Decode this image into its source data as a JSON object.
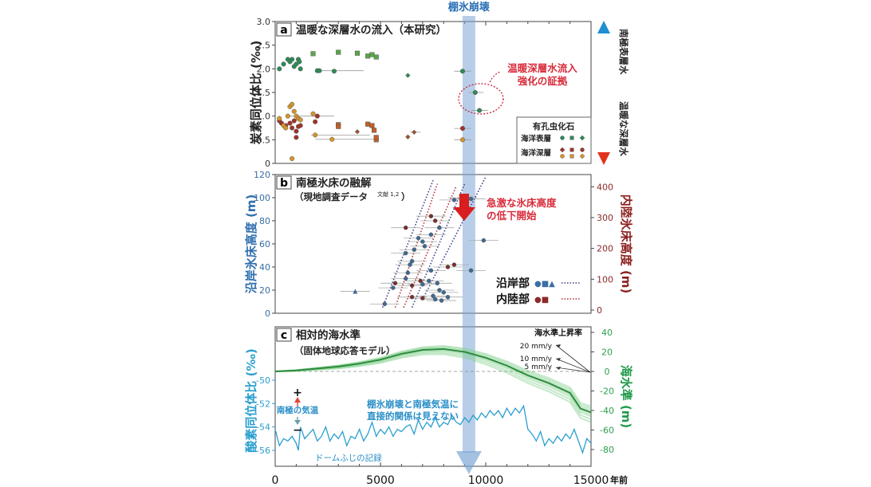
{
  "figure": {
    "top_label": "棚氷崩壊",
    "x_axis": {
      "ticks": [
        "0",
        "5000",
        "10000",
        "15000"
      ],
      "unit": "年前",
      "min": 0,
      "max": 15000
    },
    "collapse_time": 9200
  },
  "chart_data": [
    {
      "panel": "a",
      "type": "scatter",
      "title": "温暖な深層水の流入（本研究）",
      "ylabel": "炭素同位体比 (‰)",
      "ylim": [
        0,
        3.0
      ],
      "yticks": [
        "0",
        "0.5",
        "1.0",
        "1.5",
        "2.0",
        "2.5",
        "3.0"
      ],
      "annotation": "温暖深層水流入\n強化の証拠",
      "right_arrow": {
        "top": "南極表層水",
        "bottom": "温暖な深層水"
      },
      "legend": {
        "title": "有孔虫化石",
        "rows": [
          "海洋表層",
          "海洋深層"
        ]
      },
      "series": [
        {
          "name": "海洋表層 (circle)",
          "color": "#2e8b57",
          "points": [
            [
              200,
              2.0
            ],
            [
              400,
              2.1
            ],
            [
              600,
              2.2
            ],
            [
              700,
              2.15
            ],
            [
              800,
              2.2
            ],
            [
              900,
              2.05
            ],
            [
              1000,
              2.1
            ],
            [
              1100,
              2.2
            ],
            [
              1150,
              2.15
            ],
            [
              1200,
              2.0
            ],
            [
              2000,
              1.96
            ],
            [
              2100,
              1.96
            ],
            [
              2800,
              1.95
            ],
            [
              8900,
              1.95
            ],
            [
              9500,
              1.5
            ],
            [
              9700,
              1.12
            ]
          ]
        },
        {
          "name": "海洋表層 (square)",
          "color": "#5aa64a",
          "points": [
            [
              1800,
              2.32
            ],
            [
              3000,
              2.35
            ],
            [
              3900,
              2.33
            ],
            [
              4400,
              2.27
            ],
            [
              4600,
              2.3
            ],
            [
              4800,
              2.25
            ]
          ]
        },
        {
          "name": "海洋表層 (diamond)",
          "color": "#2e8b57",
          "points": [
            [
              6300,
              1.86
            ]
          ]
        },
        {
          "name": "海洋深層 (circle, red)",
          "color": "#a0332b",
          "points": [
            [
              200,
              0.9
            ],
            [
              300,
              0.85
            ],
            [
              500,
              0.8
            ],
            [
              700,
              0.85
            ],
            [
              800,
              0.75
            ],
            [
              900,
              0.9
            ],
            [
              1000,
              0.55
            ],
            [
              1000,
              0.68
            ],
            [
              1100,
              0.78
            ],
            [
              1200,
              0.8
            ],
            [
              1900,
              0.88
            ],
            [
              2000,
              1.0
            ],
            [
              8900,
              0.74
            ]
          ]
        },
        {
          "name": "海洋深層 (circle, orange)",
          "color": "#d4952a",
          "points": [
            [
              200,
              0.95
            ],
            [
              400,
              0.8
            ],
            [
              500,
              0.75
            ],
            [
              600,
              1.0
            ],
            [
              700,
              1.2
            ],
            [
              800,
              1.25
            ],
            [
              900,
              1.1
            ],
            [
              1000,
              1.0
            ],
            [
              1100,
              0.95
            ],
            [
              1200,
              0.92
            ],
            [
              1800,
              1.05
            ],
            [
              1900,
              0.6
            ],
            [
              2700,
              0.51
            ],
            [
              800,
              0.1
            ],
            [
              8900,
              0.5
            ]
          ]
        },
        {
          "name": "海洋深層 (square)",
          "color": "#c0602a",
          "points": [
            [
              3000,
              0.82
            ],
            [
              3000,
              0.78
            ],
            [
              4400,
              0.83
            ],
            [
              4600,
              0.8
            ],
            [
              4700,
              0.7
            ],
            [
              4800,
              0.5
            ],
            [
              4800,
              0.55
            ]
          ]
        },
        {
          "name": "海洋深層 (diamond)",
          "color": "#a0522d",
          "points": [
            [
              3900,
              0.67
            ],
            [
              6300,
              0.56
            ],
            [
              6600,
              0.66
            ]
          ]
        }
      ]
    },
    {
      "panel": "b",
      "type": "scatter",
      "title": "南極氷床の融解",
      "subtitle": "（現地調査データ",
      "subtitle_ref": "文献 1,2",
      "ylabel_left": "沿岸氷床高度 (m)",
      "ylabel_right": "内陸氷床高度 (m)",
      "ylim_left": [
        0,
        120
      ],
      "ylim_right": [
        0,
        450
      ],
      "yticks_left": [
        "0",
        "20",
        "40",
        "60",
        "80",
        "100",
        "120"
      ],
      "yticks_right": [
        "0",
        "100",
        "200",
        "300",
        "400"
      ],
      "annotation": "急激な氷床高度\nの低下開始",
      "legend": [
        {
          "label": "沿岸部",
          "markers": "●■▲",
          "color": "#3a6ea5"
        },
        {
          "label": "内陸部",
          "markers": "●■",
          "color": "#8b2a2a"
        }
      ],
      "series": [
        {
          "name": "沿岸部",
          "color": "#3e6a93",
          "points": [
            [
              5200,
              8
            ],
            [
              5600,
              22
            ],
            [
              6200,
              30
            ],
            [
              6300,
              35
            ],
            [
              6400,
              42
            ],
            [
              6500,
              45
            ],
            [
              6200,
              52
            ],
            [
              6600,
              55
            ],
            [
              6800,
              65
            ],
            [
              7000,
              62
            ],
            [
              7100,
              58
            ],
            [
              7400,
              68
            ],
            [
              7800,
              74
            ],
            [
              7300,
              28
            ],
            [
              7700,
              26
            ],
            [
              7000,
              25
            ],
            [
              7500,
              15
            ],
            [
              8000,
              18
            ],
            [
              8200,
              14
            ],
            [
              7600,
              12
            ],
            [
              7900,
              11
            ],
            [
              8500,
              98
            ],
            [
              9300,
              99
            ],
            [
              9900,
              63
            ],
            [
              9300,
              37
            ],
            [
              7400,
              37
            ],
            [
              7800,
              20
            ]
          ]
        },
        {
          "name": "沿岸部 (triangle)",
          "color": "#3e6a93",
          "points": [
            [
              3800,
              19
            ]
          ]
        },
        {
          "name": "内陸部",
          "color": "#7a2f2a",
          "points": [
            [
              5700,
              26
            ],
            [
              6500,
              24
            ],
            [
              6900,
              28
            ],
            [
              6500,
              14
            ],
            [
              7000,
              13
            ],
            [
              6200,
              74
            ],
            [
              7400,
              84
            ],
            [
              7600,
              80
            ],
            [
              8200,
              40
            ],
            [
              8500,
              42
            ],
            [
              8900,
              100
            ]
          ]
        }
      ]
    },
    {
      "panel": "c",
      "type": "line",
      "title": "相対的海水準",
      "subtitle": "（固体地球応答モデル）",
      "ylabel_left": "酸素同位体比 (‰)",
      "ylabel_right": "海水準 (m)",
      "ylim_left": [
        -57.5,
        -44
      ],
      "ylim_right": [
        -90,
        45
      ],
      "yticks_left": [
        "-50",
        "-52",
        "-54",
        "-56"
      ],
      "yticks_right": [
        "40",
        "20",
        "0",
        "-20",
        "-40",
        "-60",
        "-80"
      ],
      "rate_legend": {
        "title": "海水準上昇率",
        "labels": [
          "20 mm/y",
          "10 mm/y",
          "5 mm/y"
        ]
      },
      "temp_labels": {
        "plus": "+",
        "minus": "−",
        "text": "南極の気温"
      },
      "annotation": "棚氷崩壊と南極気温に\n直接的関係は見えない",
      "record_label": "ドームふじの記録",
      "sea_level": {
        "x": [
          0,
          1000,
          2000,
          3000,
          4000,
          5000,
          6000,
          7000,
          8000,
          9000,
          10000,
          11000,
          12000,
          13000,
          14000,
          14500,
          15000
        ],
        "y": [
          0,
          1,
          3,
          5,
          8,
          12,
          18,
          22,
          23,
          20,
          14,
          6,
          -4,
          -12,
          -22,
          -38,
          -42
        ]
      },
      "oxygen_isotope": {
        "x": [
          0,
          200,
          400,
          600,
          800,
          1000,
          1100,
          1200,
          1400,
          1600,
          1800,
          2000,
          2200,
          2400,
          2600,
          2800,
          3000,
          3200,
          3400,
          3600,
          3800,
          4000,
          4200,
          4400,
          4600,
          4800,
          5000,
          5200,
          5400,
          5600,
          5800,
          6000,
          6200,
          6400,
          6600,
          6800,
          7000,
          7200,
          7400,
          7600,
          7800,
          8000,
          8200,
          8400,
          8600,
          8800,
          9000,
          9200,
          9400,
          9600,
          9800,
          10000,
          10200,
          10400,
          10600,
          10800,
          11000,
          11200,
          11400,
          11600,
          11800,
          12000,
          12200,
          12400,
          12600,
          12800,
          13000,
          13200,
          13400,
          13600,
          13800,
          14000,
          14200,
          14400,
          14600,
          14800,
          15000
        ],
        "y": [
          -54.2,
          -55.6,
          -55.0,
          -55.2,
          -54.8,
          -55.4,
          -56.0,
          -54.0,
          -55.0,
          -54.6,
          -54.2,
          -55.2,
          -54.8,
          -54.0,
          -55.2,
          -54.6,
          -55.0,
          -54.4,
          -55.6,
          -54.8,
          -55.0,
          -54.2,
          -55.2,
          -54.6,
          -53.6,
          -54.8,
          -54.2,
          -54.6,
          -54.0,
          -54.8,
          -54.2,
          -54.4,
          -54.0,
          -53.8,
          -54.6,
          -53.4,
          -54.2,
          -53.6,
          -54.0,
          -53.2,
          -54.0,
          -53.6,
          -53.8,
          -53.0,
          -53.6,
          -53.8,
          -53.2,
          -53.6,
          -53.0,
          -53.4,
          -52.8,
          -53.2,
          -52.6,
          -53.0,
          -52.6,
          -53.2,
          -52.4,
          -53.0,
          -52.4,
          -52.8,
          -52.2,
          -54.2,
          -54.6,
          -55.2,
          -54.4,
          -55.6,
          -55.0,
          -55.4,
          -54.8,
          -55.2,
          -54.6,
          -55.0,
          -54.2,
          -55.2,
          -56.2,
          -55.0,
          -55.4
        ]
      }
    }
  ]
}
